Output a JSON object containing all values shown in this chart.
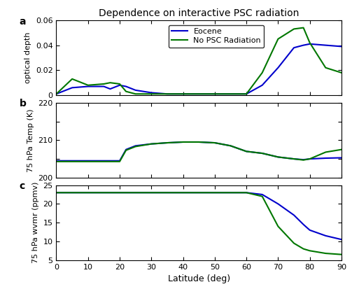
{
  "title": "Dependence on interactive PSC radiation",
  "xlabel": "Latitude (deg)",
  "panel_labels": [
    "a",
    "b",
    "c"
  ],
  "blue_color": "#0000cc",
  "green_color": "#007700",
  "lat": [
    0,
    5,
    10,
    15,
    17,
    20,
    22,
    25,
    30,
    35,
    40,
    45,
    50,
    55,
    60,
    65,
    70,
    75,
    78,
    80,
    85,
    90
  ],
  "panel_a": {
    "ylabel": "optical depth",
    "ylim": [
      0,
      0.06
    ],
    "yticks": [
      0,
      0.02,
      0.04,
      0.06
    ],
    "yticklabels": [
      "0",
      "0.02",
      "0.04",
      "0.06"
    ],
    "blue": [
      0.001,
      0.006,
      0.007,
      0.007,
      0.005,
      0.008,
      0.007,
      0.004,
      0.002,
      0.001,
      0.001,
      0.001,
      0.001,
      0.001,
      0.001,
      0.008,
      0.022,
      0.038,
      0.04,
      0.041,
      0.04,
      0.039
    ],
    "green": [
      0.001,
      0.013,
      0.008,
      0.009,
      0.01,
      0.009,
      0.003,
      0.001,
      0.001,
      0.001,
      0.001,
      0.001,
      0.001,
      0.001,
      0.001,
      0.018,
      0.045,
      0.053,
      0.054,
      0.042,
      0.022,
      0.018
    ]
  },
  "panel_b": {
    "ylabel": "75 hPa Temp (K)",
    "ylim": [
      200,
      220
    ],
    "yticks": [
      200,
      205,
      210,
      215,
      220
    ],
    "yticklabels": [
      "200",
      "",
      "210",
      "",
      "220"
    ],
    "blue": [
      204.5,
      204.5,
      204.5,
      204.5,
      204.5,
      204.5,
      207.5,
      208.5,
      209.0,
      209.3,
      209.5,
      209.5,
      209.3,
      208.5,
      207.0,
      206.5,
      205.5,
      205.0,
      204.8,
      205.0,
      205.2,
      205.3
    ],
    "green": [
      204.3,
      204.3,
      204.3,
      204.3,
      204.3,
      204.3,
      207.3,
      208.3,
      209.0,
      209.3,
      209.5,
      209.5,
      209.3,
      208.5,
      207.0,
      206.5,
      205.5,
      205.0,
      204.7,
      205.0,
      206.8,
      207.5
    ]
  },
  "panel_c": {
    "ylabel": "75 hPa wvmr (ppmv)",
    "ylim": [
      5,
      25
    ],
    "yticks": [
      5,
      10,
      15,
      20,
      25
    ],
    "yticklabels": [
      "5",
      "10",
      "15",
      "20",
      "25"
    ],
    "blue": [
      23.0,
      23.0,
      23.0,
      23.0,
      23.0,
      23.0,
      23.0,
      23.0,
      23.0,
      23.0,
      23.0,
      23.0,
      23.0,
      23.0,
      23.0,
      22.5,
      20.0,
      17.0,
      14.5,
      13.0,
      11.5,
      10.5
    ],
    "green": [
      23.0,
      23.0,
      23.0,
      23.0,
      23.0,
      23.0,
      23.0,
      23.0,
      23.0,
      23.0,
      23.0,
      23.0,
      23.0,
      23.0,
      23.0,
      22.0,
      14.0,
      9.5,
      8.0,
      7.5,
      6.8,
      6.5
    ]
  },
  "legend_labels": [
    "Eocene",
    "No PSC Radiation"
  ]
}
